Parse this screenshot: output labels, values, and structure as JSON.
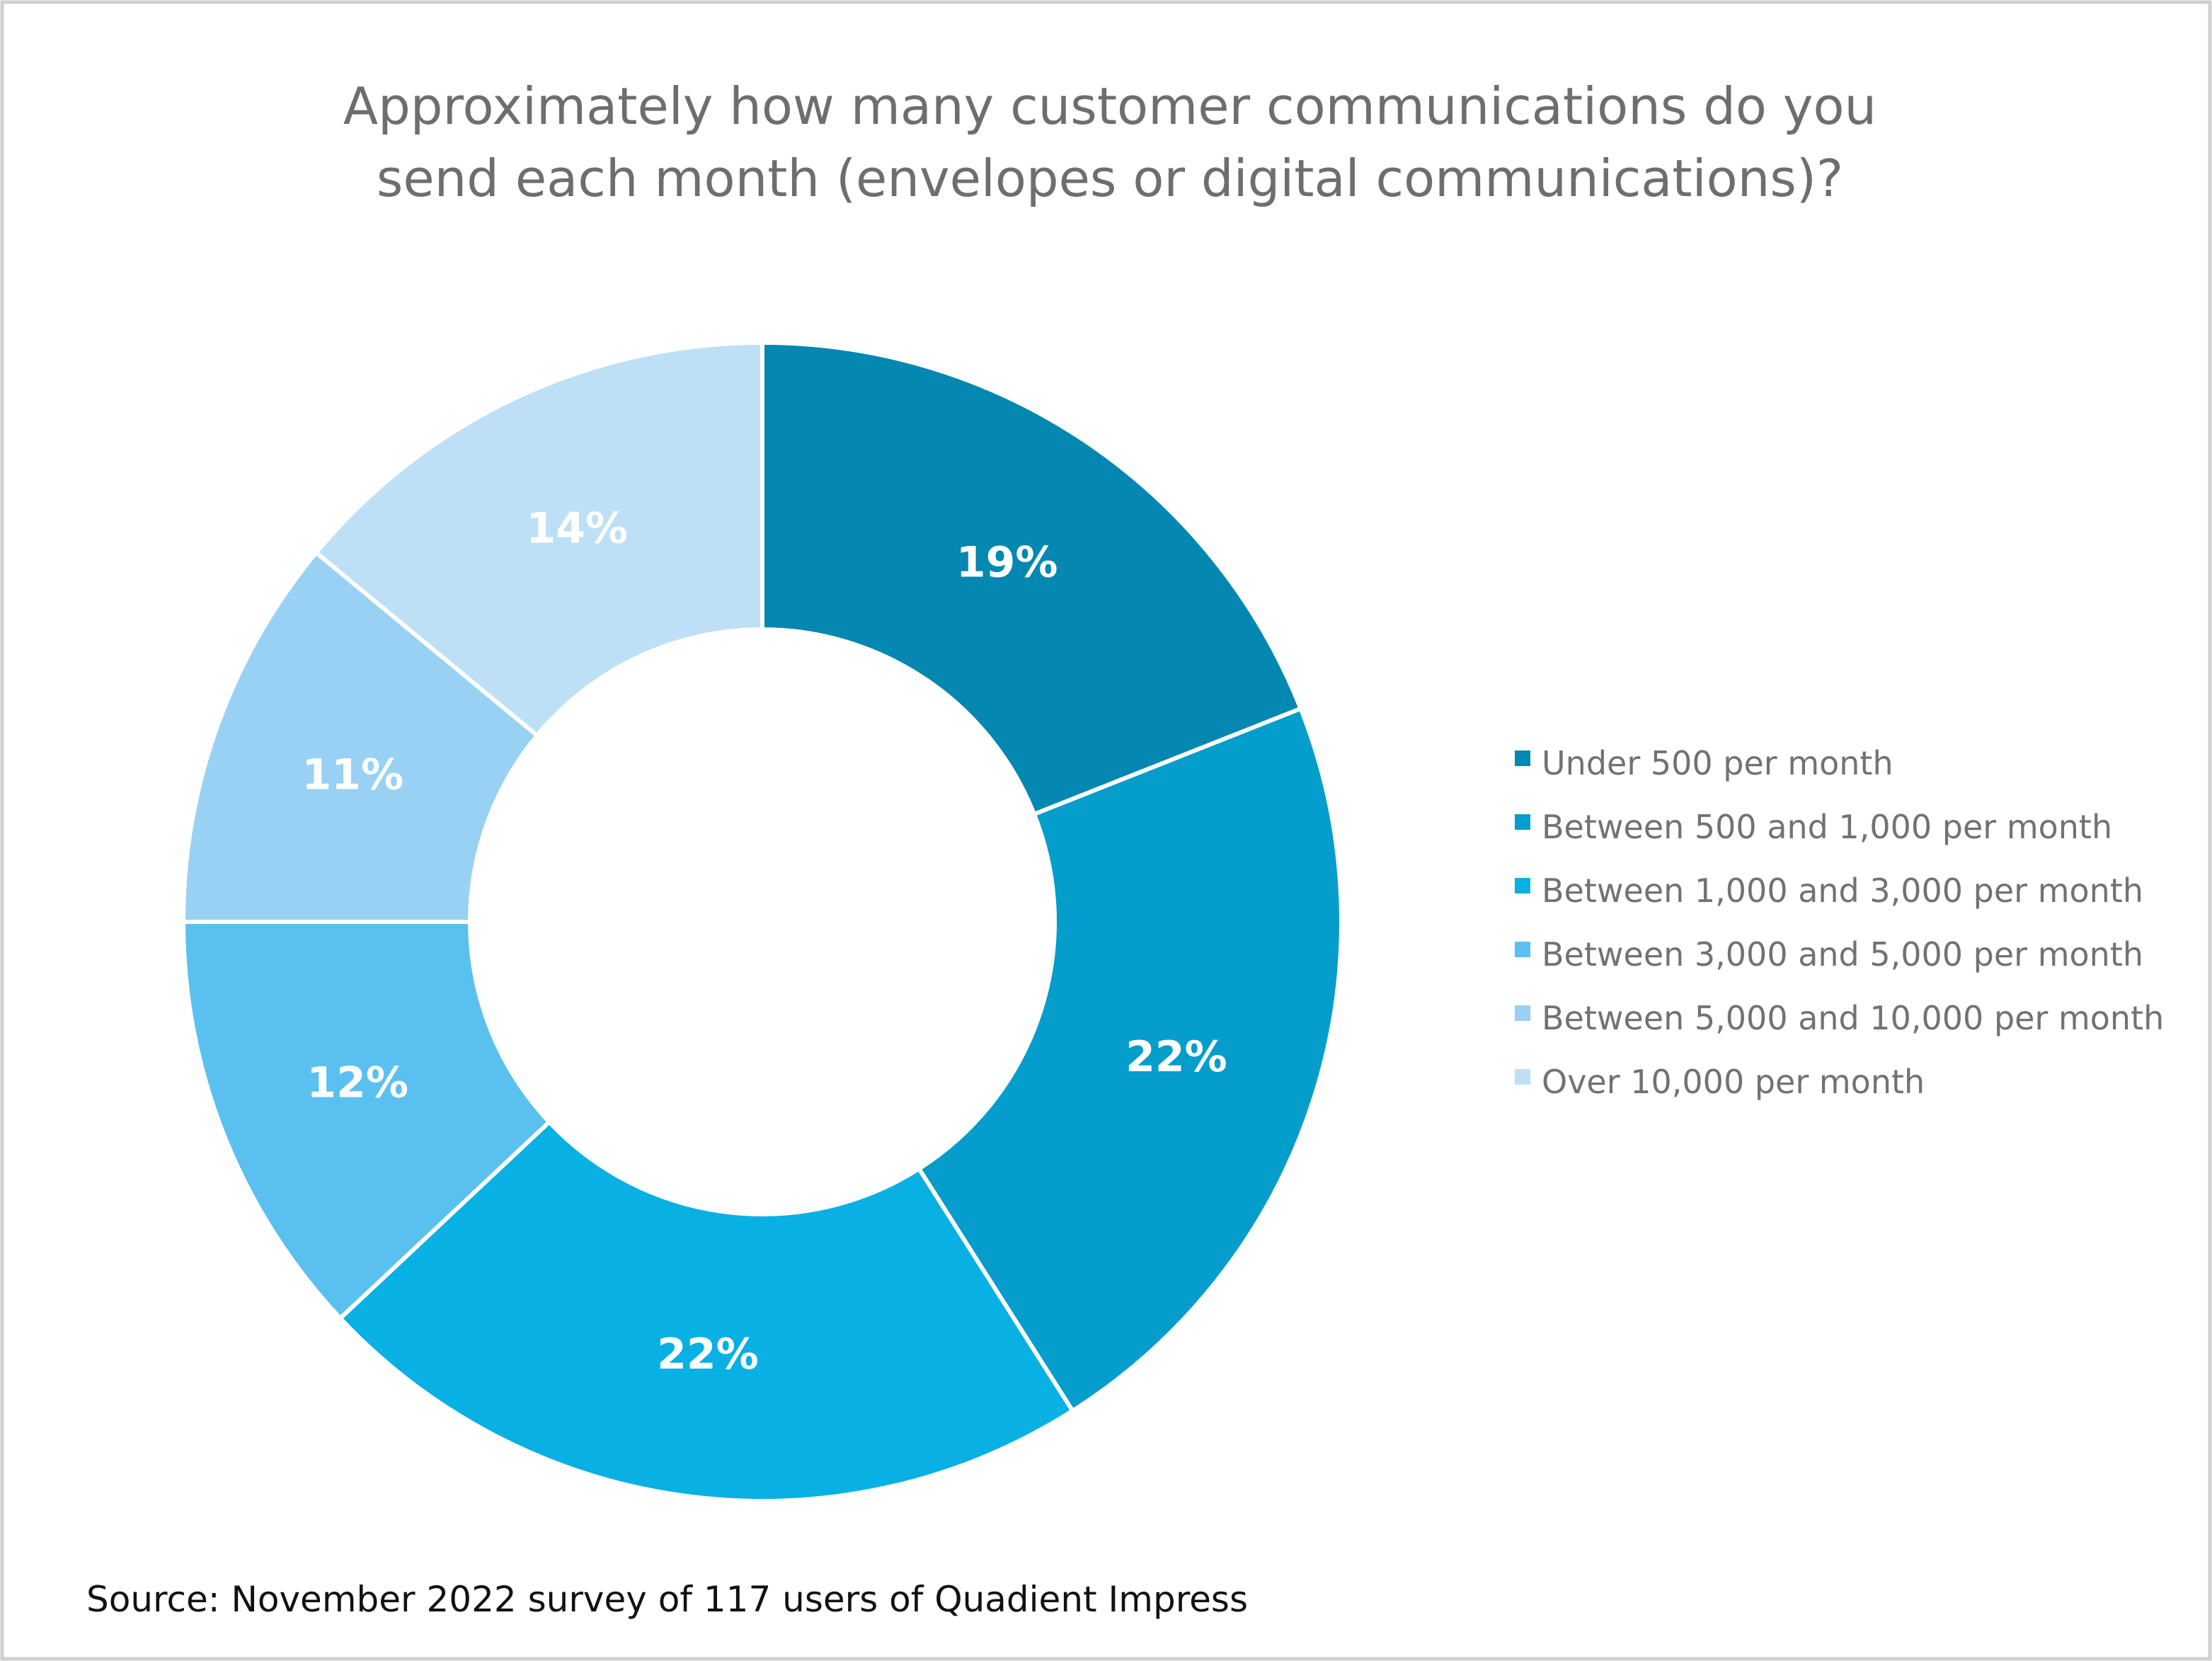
{
  "chart_data": {
    "type": "pie",
    "variant": "donut",
    "title_lines": [
      "Approximately how many customer communications do you",
      "send each month (envelopes or digital communications)?"
    ],
    "categories": [
      "Under 500 per month",
      "Between 500 and 1,000 per month",
      "Between 1,000 and 3,000 per month",
      "Between 3,000 and 5,000 per month",
      "Between 5,000 and 10,000 per month",
      "Over 10,000 per month"
    ],
    "values": [
      19,
      22,
      22,
      12,
      11,
      14
    ],
    "data_labels": [
      "19%",
      "22%",
      "22%",
      "12%",
      "11%",
      "14%"
    ],
    "colors": [
      "#0487b1",
      "#059dcc",
      "#08b0e4",
      "#5ac0f0",
      "#98d1f3",
      "#bde0f6"
    ],
    "unit": "%",
    "legend_position": "right",
    "start": "top, clockwise"
  },
  "source": "Source: November 2022 survey of 117 users of Quadient Impress"
}
